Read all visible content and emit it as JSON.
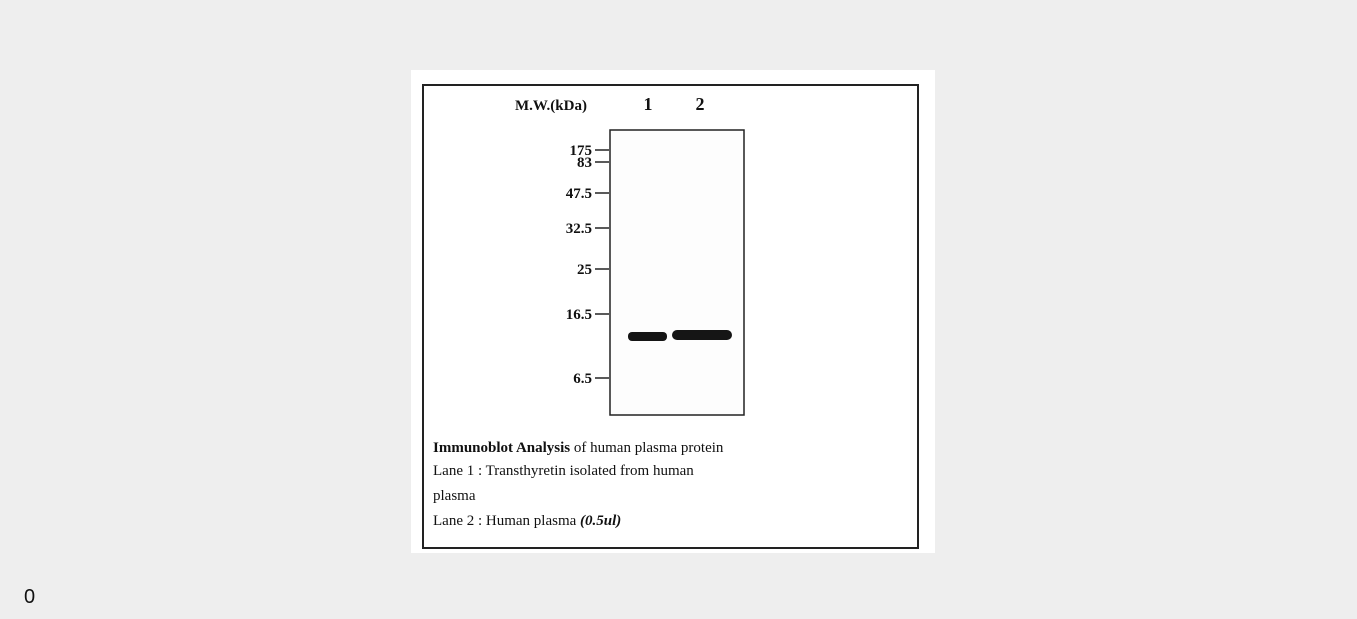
{
  "figure": {
    "header": {
      "mw_label": "M.W.(kDa)",
      "lanes": [
        "1",
        "2"
      ]
    },
    "markers": [
      "175",
      "83",
      "47.5",
      "32.5",
      "25",
      "16.5",
      "6.5"
    ],
    "caption": {
      "title_bold": "Immunoblot Analysis",
      "title_rest": " of human plasma protein",
      "lane1_line1": "Lane 1 : Transthyretin isolated from human",
      "lane1_line2": "plasma",
      "lane2": "Lane 2 : Human plasma ",
      "lane2_italic": "(0.5ul)"
    }
  },
  "footer": {
    "text": "0"
  }
}
